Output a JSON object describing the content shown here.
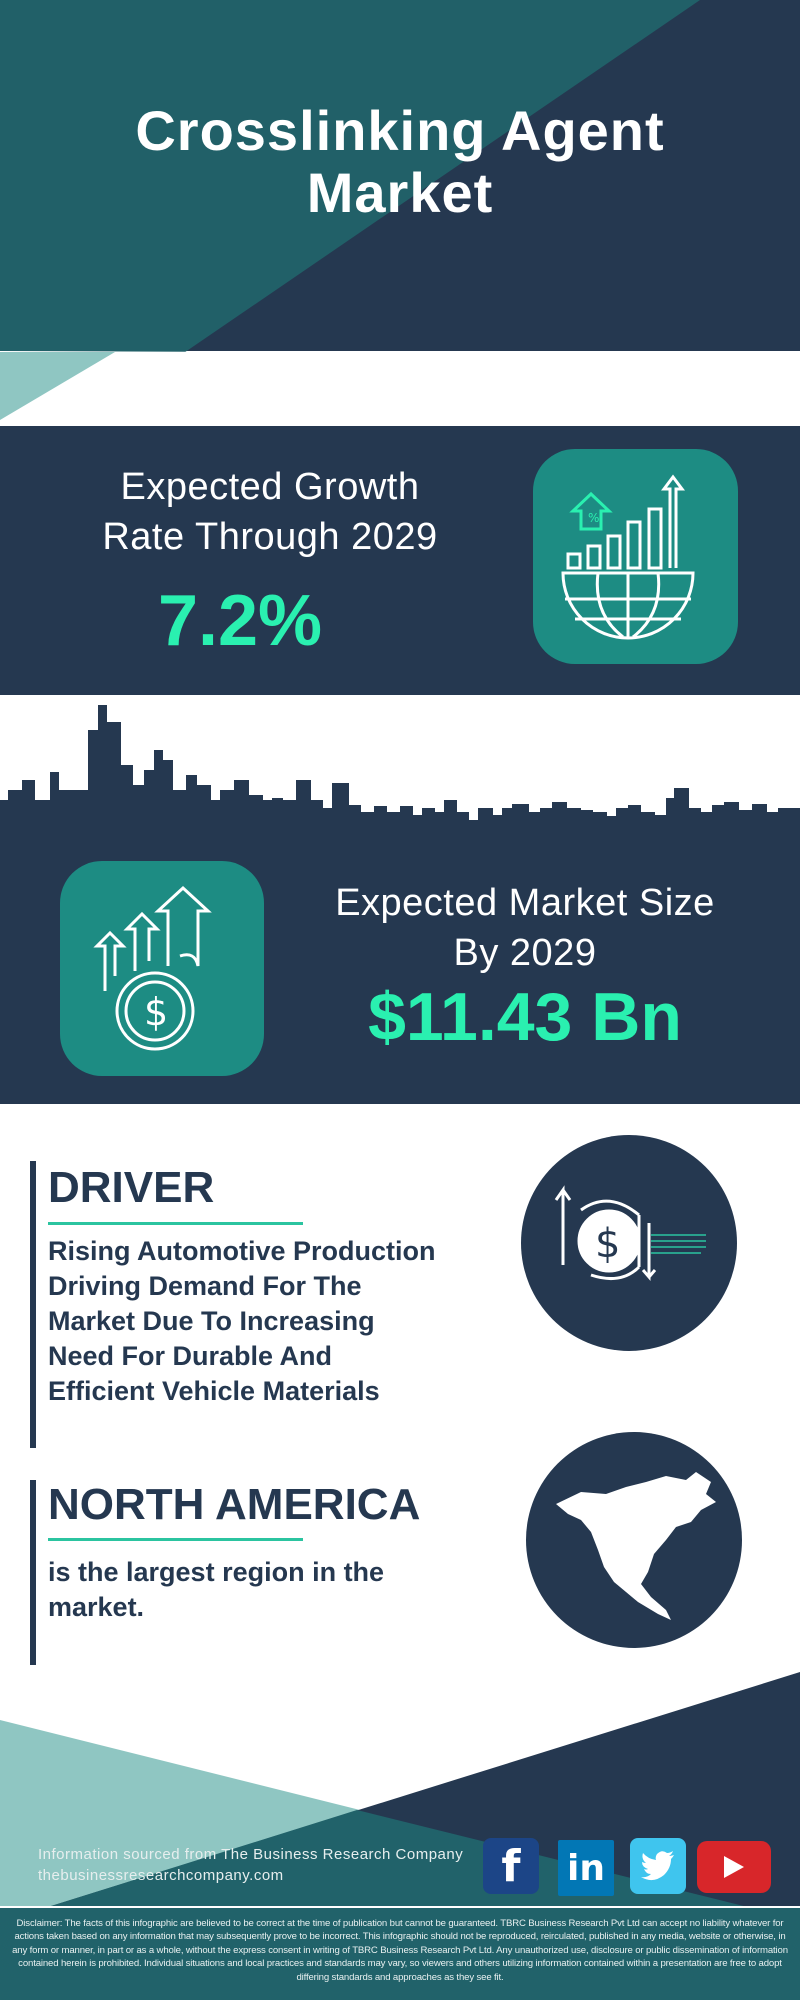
{
  "header": {
    "title_line1": "Crosslinking Agent",
    "title_line2": "Market"
  },
  "growth": {
    "label_line1": "Expected Growth",
    "label_line2": "Rate Through 2029",
    "value": "7.2%",
    "icon": "globe-bar-chart-growth-icon"
  },
  "market_size": {
    "label_line1": "Expected Market Size",
    "label_line2": "By 2029",
    "value": "$11.43 Bn",
    "icon": "dollar-coin-arrows-up-icon"
  },
  "driver": {
    "heading": "DRIVER",
    "lines": [
      "Rising Automotive Production",
      "Driving Demand For The",
      "Market Due To Increasing",
      "Need For Durable And",
      "Efficient Vehicle Materials"
    ],
    "icon": "dollar-exchange-arrows-icon"
  },
  "region": {
    "heading": "NORTH AMERICA",
    "lines": [
      "is the largest region in the",
      "market."
    ],
    "icon": "north-america-map-icon"
  },
  "footer": {
    "source": "Information sourced from The Business Research Company",
    "url": "thebusinessresearchcompany.com",
    "social": [
      "facebook",
      "linkedin",
      "twitter",
      "youtube"
    ],
    "disclaimer": "Disclaimer: The facts of this infographic are believed to be correct at the time of publication but cannot be guaranteed. TBRC Business Research Pvt Ltd can accept no liability whatever for actions taken based on any information that may subsequently prove to be incorrect. This infographic should not be reproduced, reirculated, published in any media, website or otherwise, in any form or manner, in part or as a whole, without the express consent in writing of TBRC Business Research Pvt Ltd. Any unauthorized use, disclosure or public dissemination of information contained herein is prohibited. Individual situations and local practices and standards may vary, so viewers and others utilizing information contained within a presentation are free to adopt differing standards and approaches as they see fit."
  },
  "colors": {
    "navy": "#253850",
    "teal": "#216068",
    "light_teal": "#8fc6c2",
    "accent": "#2af0b0",
    "icon_box": "#1d8c83"
  }
}
